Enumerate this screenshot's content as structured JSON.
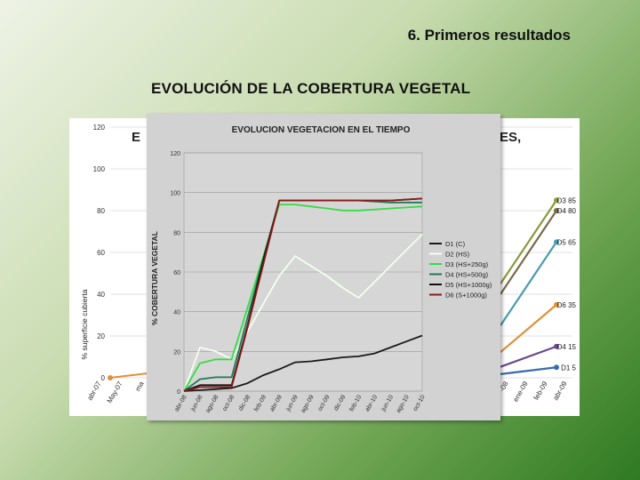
{
  "slide": {
    "title": "6. Primeros resultados",
    "section_title": "EVOLUCIÓN DE LA COBERTURA VEGETAL"
  },
  "chart_data": [
    {
      "type": "line",
      "title": "EVOLUCION VEGETACION EN EL TIEMPO",
      "xlabel": "",
      "ylabel": "% COBERTURA VEGETAL",
      "ylim": [
        0,
        120
      ],
      "yticks": [
        0,
        20,
        40,
        60,
        80,
        100,
        120
      ],
      "grid": true,
      "legend_position": "right",
      "categories": [
        "abr-08",
        "jun-08",
        "ago-08",
        "oct-08",
        "dic-08",
        "feb-09",
        "abr-09",
        "jun-09",
        "ago-09",
        "oct-09",
        "dic-09",
        "feb-10",
        "abr-10",
        "jun-10",
        "ago-10",
        "oct-10"
      ],
      "series": [
        {
          "name": "D1 (C)",
          "color": "#1a1a1a",
          "values": [
            0,
            0.5,
            1,
            1.5,
            4,
            8,
            11,
            14.5,
            15,
            16,
            17,
            17.5,
            19,
            22,
            25,
            28
          ]
        },
        {
          "name": "D2 (HS)",
          "color": "#f4fff0",
          "values": [
            0,
            22,
            20,
            16,
            30,
            44,
            58,
            68,
            63,
            58,
            52,
            47,
            55,
            63,
            71,
            79
          ]
        },
        {
          "name": "D3 (HS+250g)",
          "color": "#33dd44",
          "values": [
            0,
            14,
            16,
            16,
            42,
            68,
            94,
            94,
            93,
            92,
            91,
            91,
            91.5,
            92,
            92.5,
            93
          ]
        },
        {
          "name": "D4 (HS+500g)",
          "color": "#1f7a55",
          "values": [
            0,
            6,
            7,
            7,
            37,
            67,
            96,
            96,
            96,
            96,
            96,
            96,
            95.5,
            95,
            95,
            95
          ]
        },
        {
          "name": "D5 (HS+1000g)",
          "color": "#111111",
          "values": [
            0,
            3,
            3,
            3,
            33,
            66,
            96,
            96,
            96,
            96,
            96,
            96,
            96,
            96,
            96.5,
            97
          ]
        },
        {
          "name": "D6 (S+1000g)",
          "color": "#8b1a1a",
          "values": [
            0,
            2,
            2,
            2,
            32,
            64,
            96,
            96,
            96,
            96,
            96,
            96,
            96,
            96,
            96.5,
            97
          ]
        }
      ]
    },
    {
      "type": "line",
      "title_fragments": [
        "E",
        "ES,"
      ],
      "ylabel": "% superficie cubierta",
      "ylim": [
        0,
        120
      ],
      "yticks": [
        0,
        20,
        40,
        60,
        80,
        100,
        120
      ],
      "visible_x_labels_left": [
        "abr-07",
        "May-07",
        "ma"
      ],
      "visible_x_labels_right": [
        "-08",
        "ene-09",
        "feb-09",
        "abr-09"
      ],
      "end_labels": [
        {
          "text": "D3 85",
          "value": 85,
          "color": "#8a9a3a"
        },
        {
          "text": "D4 80",
          "value": 80,
          "color": "#7a6a4a"
        },
        {
          "text": "D5 65",
          "value": 65,
          "color": "#4a9ab0"
        },
        {
          "text": "D6 35",
          "value": 35,
          "color": "#e0903a"
        },
        {
          "text": "D4 15",
          "value": 15,
          "color": "#6a4a8a"
        },
        {
          "text": "D1 5",
          "value": 5,
          "color": "#3a6ab0"
        }
      ]
    }
  ]
}
